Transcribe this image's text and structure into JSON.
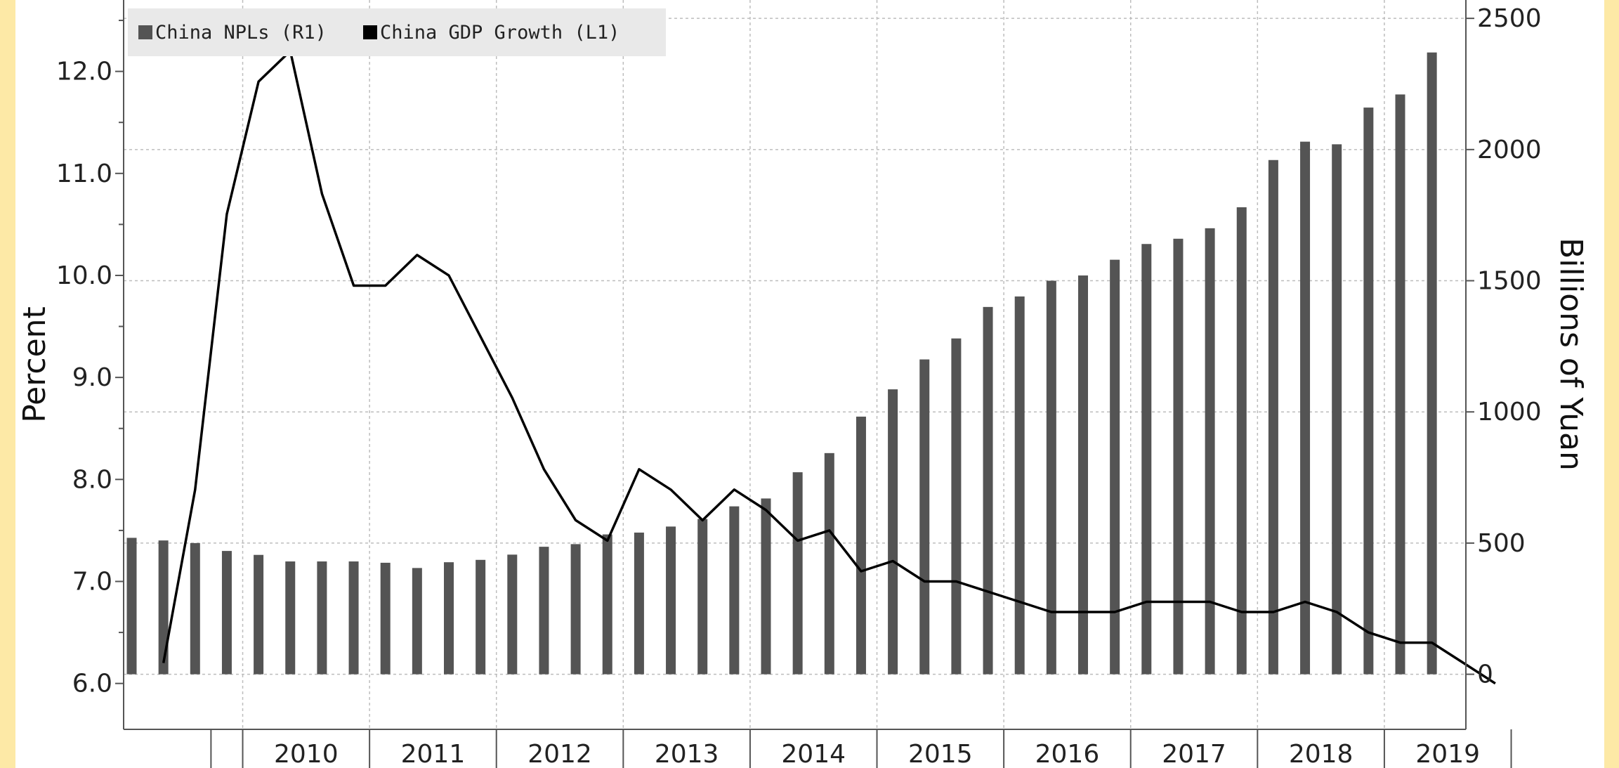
{
  "chart_data": {
    "type": "bar",
    "colors": {
      "bars": "#545454",
      "line": "#000000",
      "grid": "#bdbdbd",
      "legend_bg": "#e9e9e9",
      "border": "#fde9a6"
    },
    "legend": {
      "placement": "top-left",
      "items": [
        {
          "label": "China NPLs (R1)",
          "color": "#545454"
        },
        {
          "label": "China GDP Growth (L1)",
          "color": "#000000"
        }
      ]
    },
    "left_axis": {
      "title": "Percent",
      "ylim": [
        5.55,
        12.7
      ],
      "ticks": [
        6.0,
        7.0,
        8.0,
        9.0,
        10.0,
        11.0,
        12.0
      ],
      "tick_labels": [
        "6.0",
        "7.0",
        "8.0",
        "9.0",
        "10.0",
        "11.0",
        "12.0"
      ]
    },
    "right_axis": {
      "title": "Billions of Yuan",
      "ylim": [
        -210,
        2570
      ],
      "ticks": [
        0,
        500,
        1000,
        1500,
        2000,
        2500
      ],
      "tick_labels": [
        "0",
        "500",
        "1000",
        "1500",
        "2000",
        "2500"
      ]
    },
    "x_axis": {
      "year_labels": [
        "2010",
        "2011",
        "2012",
        "2013",
        "2014",
        "2015",
        "2016",
        "2017",
        "2018",
        "2019"
      ],
      "quarters": [
        "2009Q1",
        "2009Q2",
        "2009Q3",
        "2009Q4",
        "2010Q1",
        "2010Q2",
        "2010Q3",
        "2010Q4",
        "2011Q1",
        "2011Q2",
        "2011Q3",
        "2011Q4",
        "2012Q1",
        "2012Q2",
        "2012Q3",
        "2012Q4",
        "2013Q1",
        "2013Q2",
        "2013Q3",
        "2013Q4",
        "2014Q1",
        "2014Q2",
        "2014Q3",
        "2014Q4",
        "2015Q1",
        "2015Q2",
        "2015Q3",
        "2015Q4",
        "2016Q1",
        "2016Q2",
        "2016Q3",
        "2016Q4",
        "2017Q1",
        "2017Q2",
        "2017Q3",
        "2017Q4",
        "2018Q1",
        "2018Q2",
        "2018Q3",
        "2018Q4",
        "2019Q1",
        "2019Q2",
        "2019Q3",
        "2019Q4",
        "2020Q1"
      ]
    },
    "series": [
      {
        "name": "China NPLs (R1)",
        "type": "bar",
        "axis": "right",
        "x_start": 0,
        "values": [
          520,
          510,
          500,
          470,
          455,
          430,
          430,
          430,
          425,
          405,
          427,
          436,
          456,
          486,
          496,
          533,
          540,
          563,
          592,
          640,
          670,
          770,
          843,
          982,
          1086,
          1200,
          1280,
          1400,
          1440,
          1500,
          1520,
          1580,
          1640,
          1660,
          1700,
          1780,
          1960,
          2030,
          2020,
          2160,
          2210,
          2370
        ]
      },
      {
        "name": "China GDP Growth (L1)",
        "type": "line",
        "axis": "left",
        "x_start": 1,
        "values": [
          6.2,
          7.9,
          10.6,
          11.9,
          12.2,
          10.8,
          9.9,
          9.9,
          10.2,
          10.0,
          9.4,
          8.8,
          8.1,
          7.6,
          7.4,
          8.1,
          7.9,
          7.6,
          7.9,
          7.7,
          7.4,
          7.5,
          7.1,
          7.2,
          7.0,
          7.0,
          6.9,
          6.8,
          6.7,
          6.7,
          6.7,
          6.8,
          6.8,
          6.8,
          6.7,
          6.7,
          6.8,
          6.7,
          6.5,
          6.4,
          6.4,
          6.2,
          6.0
        ]
      }
    ]
  }
}
